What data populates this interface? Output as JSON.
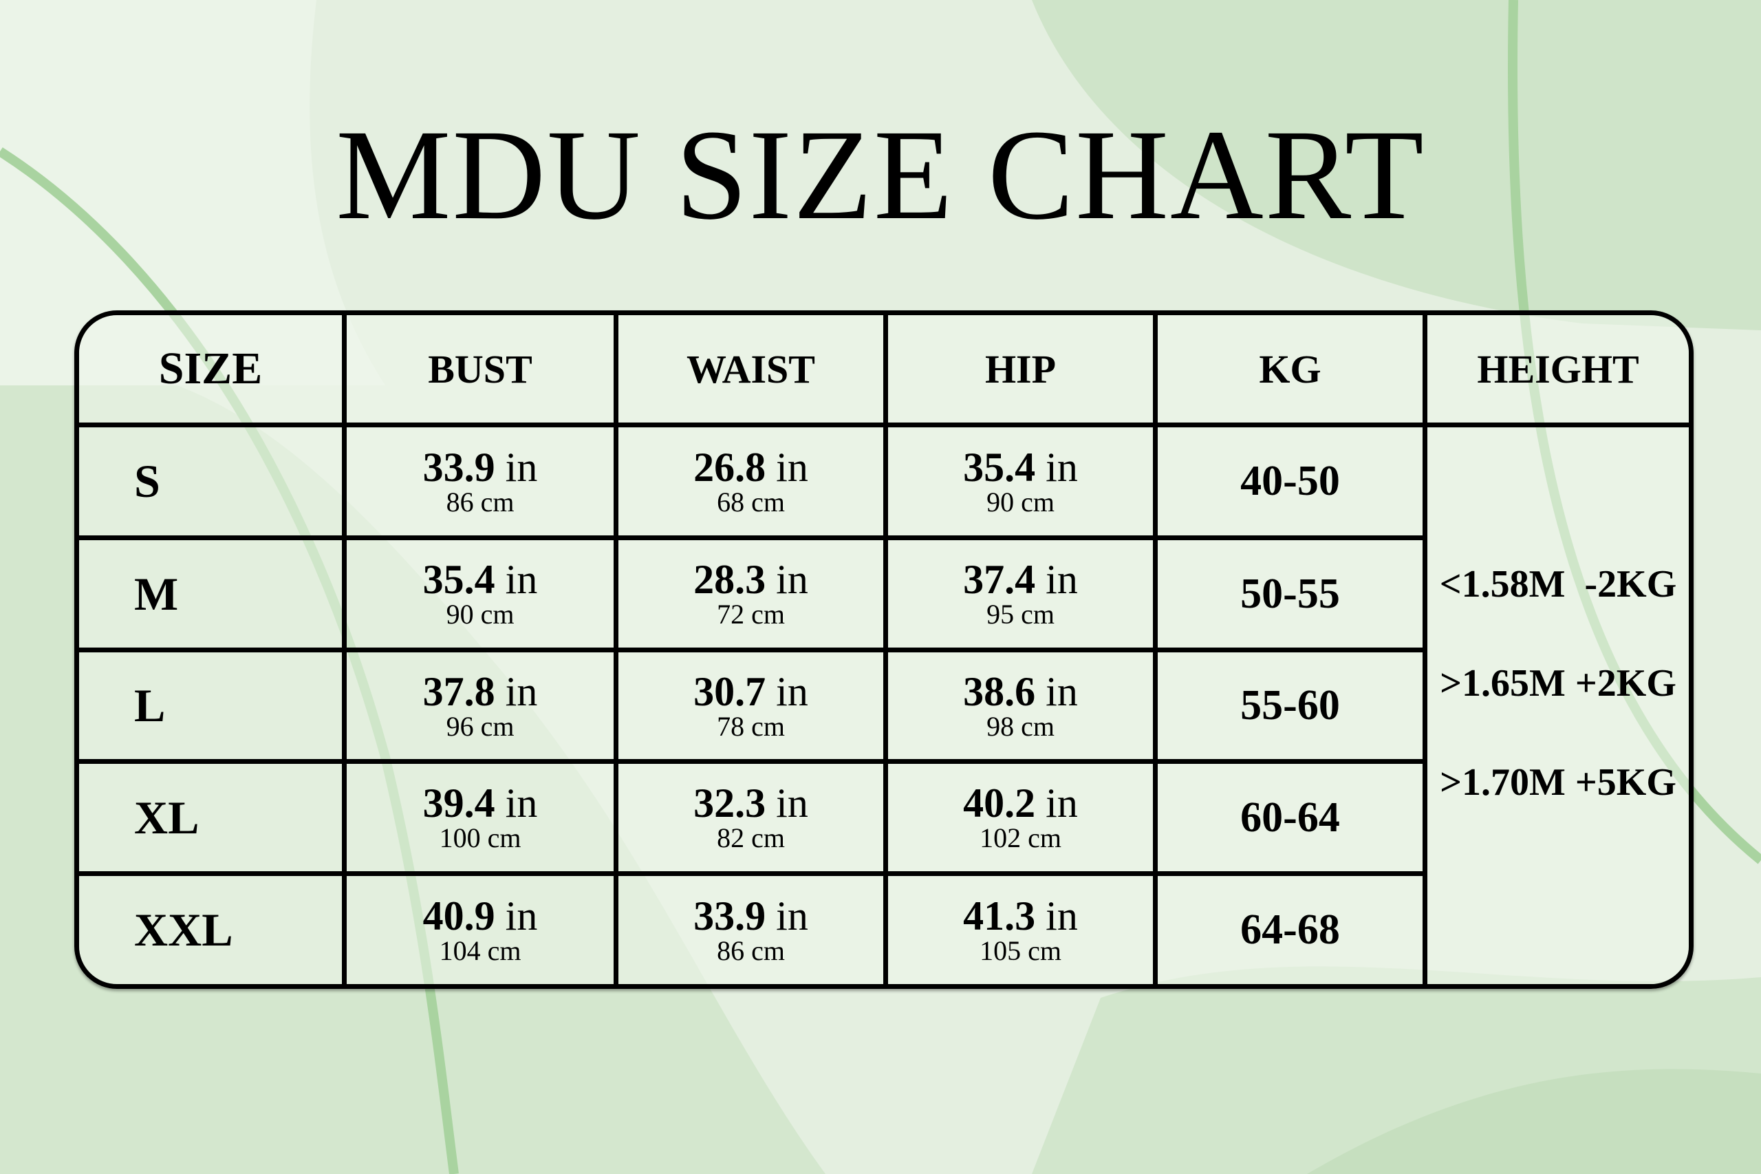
{
  "title": "MDU SIZE CHART",
  "colors": {
    "background": "#e4efe0",
    "shape_light": "#eef5eb",
    "shape_mid": "#cfe4c9",
    "stroke": "#a9d3a0",
    "border": "#000000"
  },
  "headers": [
    "SIZE",
    "BUST",
    "WAIST",
    "HIP",
    "KG",
    "HEIGHT"
  ],
  "in_unit": "in",
  "rows": [
    {
      "size": "S",
      "bust_in": "33.9",
      "bust_cm": "86 cm",
      "waist_in": "26.8",
      "waist_cm": "68 cm",
      "hip_in": "35.4",
      "hip_cm": "90 cm",
      "kg": "40-50"
    },
    {
      "size": "M",
      "bust_in": "35.4",
      "bust_cm": "90 cm",
      "waist_in": "28.3",
      "waist_cm": "72 cm",
      "hip_in": "37.4",
      "hip_cm": "95 cm",
      "kg": "50-55"
    },
    {
      "size": "L",
      "bust_in": "37.8",
      "bust_cm": "96 cm",
      "waist_in": "30.7",
      "waist_cm": "78 cm",
      "hip_in": "38.6",
      "hip_cm": "98 cm",
      "kg": "55-60"
    },
    {
      "size": "XL",
      "bust_in": "39.4",
      "bust_cm": "100 cm",
      "waist_in": "32.3",
      "waist_cm": "82 cm",
      "hip_in": "40.2",
      "hip_cm": "102 cm",
      "kg": "60-64"
    },
    {
      "size": "XXL",
      "bust_in": "40.9",
      "bust_cm": "104 cm",
      "waist_in": "33.9",
      "waist_cm": "86 cm",
      "hip_in": "41.3",
      "hip_cm": "105 cm",
      "kg": "64-68"
    }
  ],
  "height_notes": [
    "<1.58M  -2KG",
    ">1.65M +2KG",
    ">1.70M +5KG"
  ]
}
